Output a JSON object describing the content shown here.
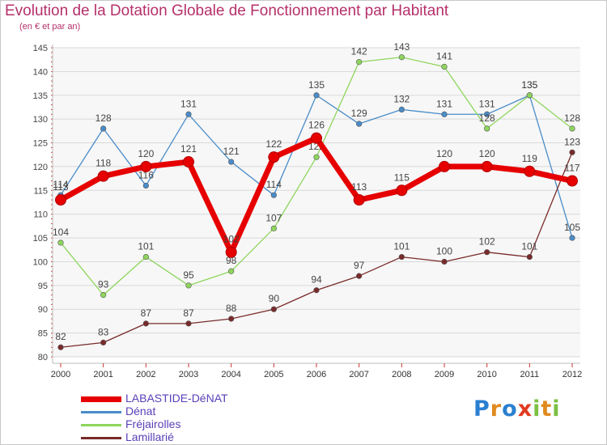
{
  "header": {
    "title": "Evolution de la Dotation Globale de Fonctionnement par Habitant",
    "subtitle": "(en € et par an)"
  },
  "chart_data": {
    "type": "line",
    "title": "Evolution de la Dotation Globale de Fonctionnement par Habitant",
    "subtitle": "(en € et par an)",
    "xlabel": "",
    "ylabel": "",
    "categories": [
      "2000",
      "2001",
      "2002",
      "2003",
      "2004",
      "2005",
      "2006",
      "2007",
      "2008",
      "2009",
      "2010",
      "2011",
      "2012"
    ],
    "ylim": [
      80,
      145
    ],
    "yticks": [
      80,
      85,
      90,
      95,
      100,
      105,
      110,
      115,
      120,
      125,
      130,
      135,
      140,
      145
    ],
    "grid": true,
    "series": [
      {
        "name": "Dénat",
        "color": "#4a8cc9",
        "values": [
          114,
          128,
          116,
          131,
          121,
          114,
          135,
          129,
          132,
          131,
          131,
          135,
          105
        ]
      },
      {
        "name": "Fréjairolles",
        "color": "#8ed65c",
        "values": [
          104,
          93,
          101,
          95,
          98,
          107,
          122,
          142,
          143,
          141,
          128,
          135,
          128
        ]
      },
      {
        "name": "Lamillarié",
        "color": "#7a2a2a",
        "values": [
          82,
          83,
          87,
          87,
          88,
          90,
          94,
          97,
          101,
          100,
          102,
          101,
          123
        ]
      },
      {
        "name": "LABASTIDE-DéNAT",
        "color": "#e60000",
        "values": [
          113,
          118,
          120,
          121,
          102,
          122,
          126,
          113,
          115,
          120,
          120,
          119,
          117
        ]
      }
    ]
  },
  "legend": {
    "items": [
      {
        "label": "LABASTIDE-DéNAT",
        "color": "#e60000"
      },
      {
        "label": "Dénat",
        "color": "#4a8cc9"
      },
      {
        "label": "Fréjairolles",
        "color": "#8ed65c"
      },
      {
        "label": "Lamillarié",
        "color": "#7a2a2a"
      }
    ]
  },
  "logo": {
    "text": "Proxiti",
    "letters": [
      {
        "ch": "P",
        "color": "#2a7fd0"
      },
      {
        "ch": "r",
        "color": "#e08a1e"
      },
      {
        "ch": "o",
        "color": "#2a7fd0"
      },
      {
        "ch": "x",
        "color": "#e03a1e"
      },
      {
        "ch": "i",
        "color": "#7bc043"
      },
      {
        "ch": "t",
        "color": "#e08a1e"
      },
      {
        "ch": "i",
        "color": "#7bc043"
      }
    ]
  }
}
